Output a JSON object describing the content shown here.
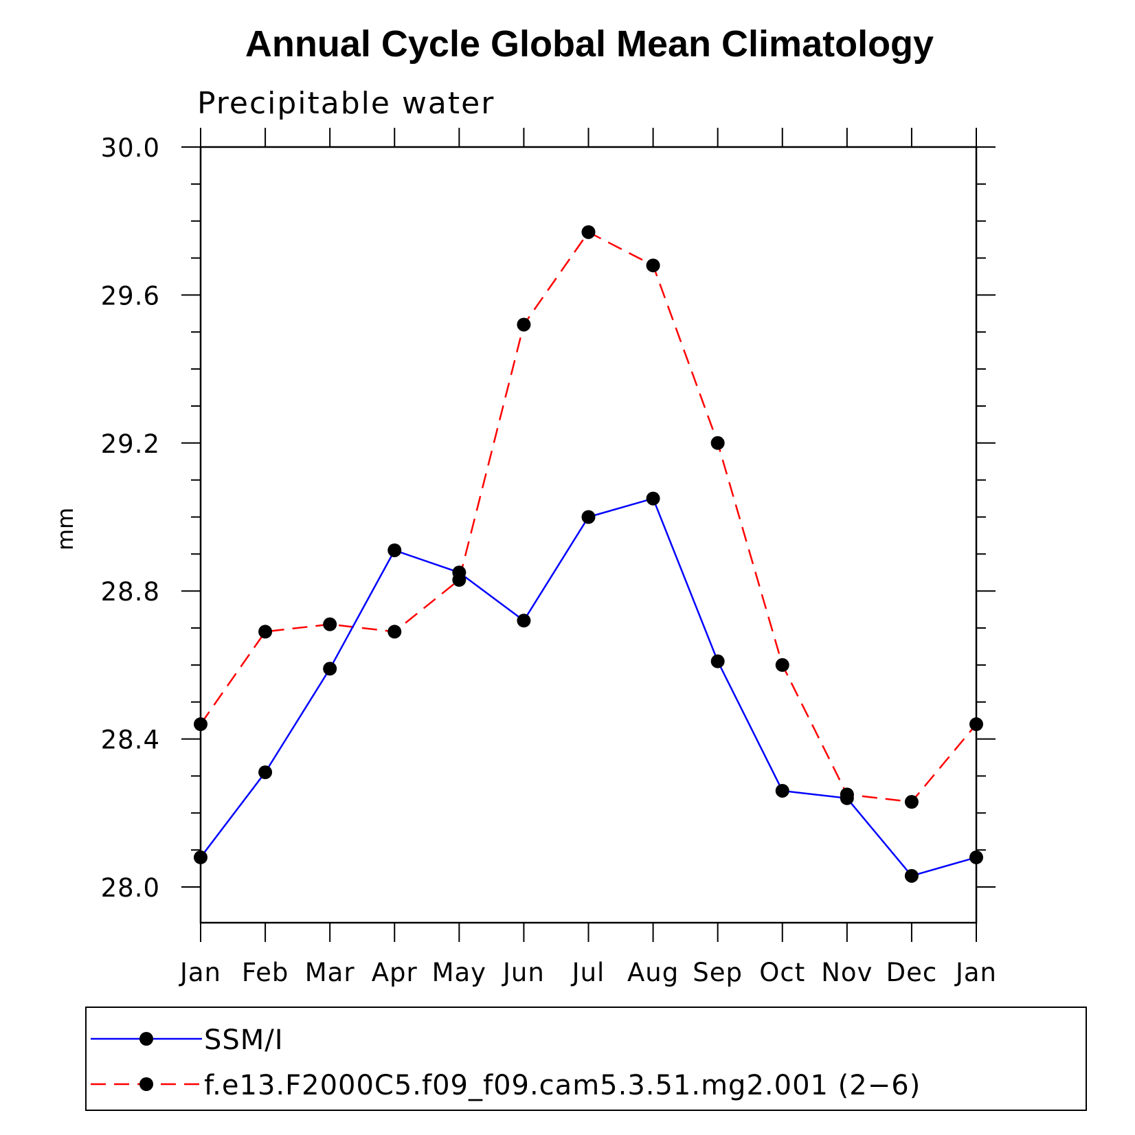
{
  "chart_data": {
    "type": "line",
    "title": "Annual Cycle Global Mean Climatology",
    "subtitle": "Precipitable water",
    "xlabel": "",
    "ylabel": "mm",
    "ylim": [
      27.9,
      30.0
    ],
    "yticks": [
      "28.0",
      "28.4",
      "28.8",
      "29.2",
      "29.6",
      "30.0"
    ],
    "ytick_values": [
      28.0,
      28.4,
      28.8,
      29.2,
      29.6,
      30.0
    ],
    "categories": [
      "Jan",
      "Feb",
      "Mar",
      "Apr",
      "May",
      "Jun",
      "Jul",
      "Aug",
      "Sep",
      "Oct",
      "Nov",
      "Dec",
      "Jan"
    ],
    "series": [
      {
        "name": "SSM/I",
        "color": "#0000ff",
        "dash": "solid",
        "values": [
          28.08,
          28.31,
          28.59,
          28.91,
          28.85,
          28.72,
          29.0,
          29.05,
          28.61,
          28.26,
          28.24,
          28.03,
          28.08
        ]
      },
      {
        "name": "f.e13.F2000C5.f09_f09.cam5.3.51.mg2.001 (2−6)",
        "color": "#ff0000",
        "dash": "dashed",
        "values": [
          28.44,
          28.69,
          28.71,
          28.69,
          28.83,
          29.52,
          29.77,
          29.68,
          29.2,
          28.6,
          28.25,
          28.23,
          28.44
        ]
      }
    ],
    "legend_position": "bottom"
  }
}
